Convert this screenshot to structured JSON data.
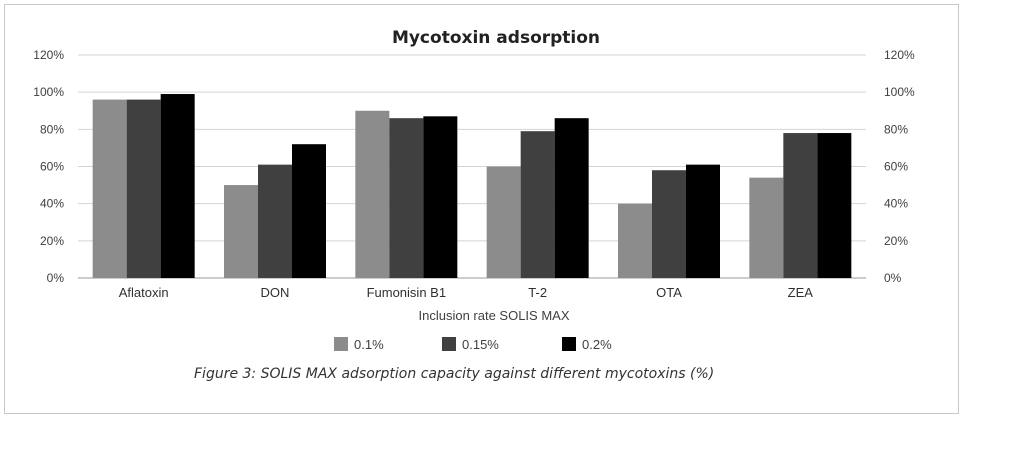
{
  "chart_data": {
    "type": "bar",
    "title": "Mycotoxin adsorption",
    "xlabel": "Inclusion rate SOLIS MAX",
    "ylabel": "",
    "ylim": [
      0,
      120
    ],
    "yticks": [
      "0%",
      "20%",
      "40%",
      "60%",
      "80%",
      "100%",
      "120%"
    ],
    "y2ticks": [
      "0%",
      "20%",
      "40%",
      "60%",
      "80%",
      "100%",
      "120%"
    ],
    "grid": true,
    "legend_position": "bottom",
    "categories": [
      "Aflatoxin",
      "DON",
      "Fumonisin B1",
      "T-2",
      "OTA",
      "ZEA"
    ],
    "series": [
      {
        "name": "0.1%",
        "color": "#8c8c8c",
        "values": [
          96,
          50,
          90,
          60,
          40,
          54
        ]
      },
      {
        "name": "0.15%",
        "color": "#404040",
        "values": [
          96,
          61,
          86,
          79,
          58,
          78
        ]
      },
      {
        "name": "0.2%",
        "color": "#000000",
        "values": [
          99,
          72,
          87,
          86,
          61,
          78
        ]
      }
    ]
  },
  "caption": "Figure 3: SOLIS MAX adsorption capacity against different mycotoxins (%)"
}
